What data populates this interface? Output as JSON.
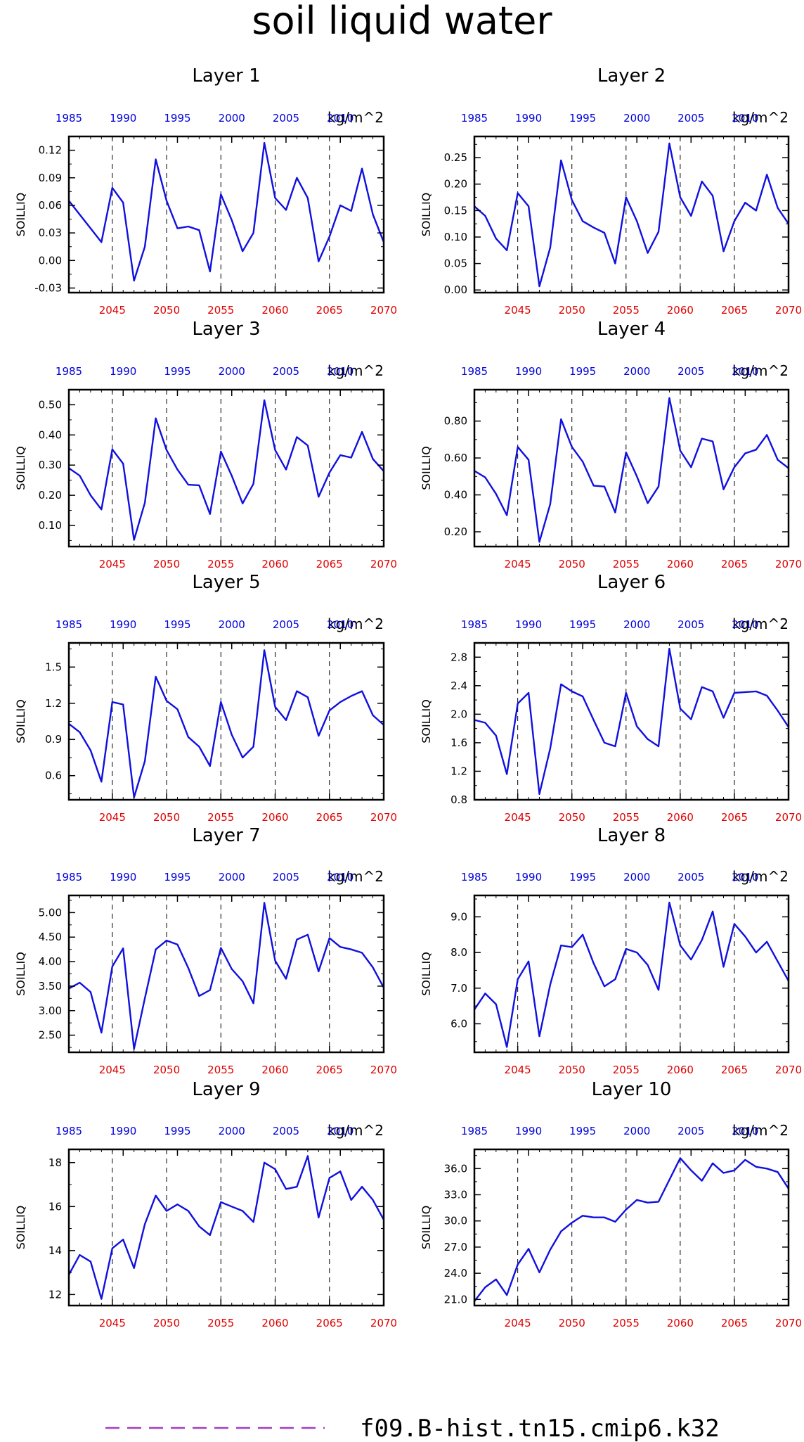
{
  "figure": {
    "title": "soil liquid water",
    "legend": {
      "label": "f09.B-hist.tn15.cmip6.k32",
      "color": "#a040c0"
    },
    "series_color": "#1010e0",
    "bottom_axis_color": "#e00000",
    "top_axis_color": "#0000dd"
  },
  "chart_data": [
    {
      "type": "line",
      "title": "Layer 1",
      "units": "kg/m^2",
      "ylabel": "SOILLIQ",
      "x": [
        2041,
        2042,
        2043,
        2044,
        2045,
        2046,
        2047,
        2048,
        2049,
        2050,
        2051,
        2052,
        2053,
        2054,
        2055,
        2056,
        2057,
        2058,
        2059,
        2060,
        2061,
        2062,
        2063,
        2064,
        2065,
        2066,
        2067,
        2068,
        2069,
        2070
      ],
      "values": [
        0.065,
        0.05,
        0.035,
        0.02,
        0.079,
        0.063,
        -0.022,
        0.015,
        0.11,
        0.065,
        0.035,
        0.037,
        0.033,
        -0.012,
        0.072,
        0.044,
        0.01,
        0.03,
        0.128,
        0.068,
        0.055,
        0.09,
        0.068,
        -0.001,
        0.026,
        0.06,
        0.054,
        0.1,
        0.05,
        0.02
      ],
      "ylim": [
        -0.035,
        0.135
      ],
      "yticks": [
        -0.03,
        0.0,
        0.03,
        0.06,
        0.09,
        0.12
      ],
      "ytick_labels": [
        "-0.03",
        "0.00",
        "0.03",
        "0.06",
        "0.09",
        "0.12"
      ],
      "xlim": [
        2041,
        2070
      ],
      "xticks": [
        2045,
        2050,
        2055,
        2060,
        2065,
        2070
      ],
      "top_xticks": [
        1985,
        1990,
        1995,
        2000,
        2005,
        2010
      ],
      "top_xtick_pos": [
        2041.0,
        2046.0,
        2051.0,
        2056.0,
        2061.0,
        2066.0
      ],
      "vlines": [
        2045,
        2050,
        2055,
        2060,
        2065
      ]
    },
    {
      "type": "line",
      "title": "Layer 2",
      "units": "kg/m^2",
      "ylabel": "SOILLIQ",
      "x": [
        2041,
        2042,
        2043,
        2044,
        2045,
        2046,
        2047,
        2048,
        2049,
        2050,
        2051,
        2052,
        2053,
        2054,
        2055,
        2056,
        2057,
        2058,
        2059,
        2060,
        2061,
        2062,
        2063,
        2064,
        2065,
        2066,
        2067,
        2068,
        2069,
        2070
      ],
      "values": [
        0.158,
        0.14,
        0.097,
        0.075,
        0.183,
        0.158,
        0.007,
        0.08,
        0.245,
        0.17,
        0.13,
        0.118,
        0.108,
        0.05,
        0.175,
        0.13,
        0.07,
        0.11,
        0.277,
        0.175,
        0.14,
        0.205,
        0.178,
        0.073,
        0.13,
        0.165,
        0.15,
        0.218,
        0.155,
        0.125
      ],
      "ylim": [
        -0.005,
        0.29
      ],
      "yticks": [
        0.0,
        0.05,
        0.1,
        0.15,
        0.2,
        0.25
      ],
      "ytick_labels": [
        "0.00",
        "0.05",
        "0.10",
        "0.15",
        "0.20",
        "0.25"
      ],
      "xlim": [
        2041,
        2070
      ],
      "xticks": [
        2045,
        2050,
        2055,
        2060,
        2065,
        2070
      ],
      "top_xticks": [
        1985,
        1990,
        1995,
        2000,
        2005,
        2010
      ],
      "top_xtick_pos": [
        2041.0,
        2046.0,
        2051.0,
        2056.0,
        2061.0,
        2066.0
      ],
      "vlines": [
        2045,
        2050,
        2055,
        2060,
        2065
      ]
    },
    {
      "type": "line",
      "title": "Layer 3",
      "units": "kg/m^2",
      "ylabel": "SOILLIQ",
      "x": [
        2041,
        2042,
        2043,
        2044,
        2045,
        2046,
        2047,
        2048,
        2049,
        2050,
        2051,
        2052,
        2053,
        2054,
        2055,
        2056,
        2057,
        2058,
        2059,
        2060,
        2061,
        2062,
        2063,
        2064,
        2065,
        2066,
        2067,
        2068,
        2069,
        2070
      ],
      "values": [
        0.29,
        0.265,
        0.2,
        0.153,
        0.352,
        0.305,
        0.052,
        0.175,
        0.455,
        0.35,
        0.285,
        0.235,
        0.233,
        0.138,
        0.345,
        0.265,
        0.173,
        0.238,
        0.515,
        0.35,
        0.285,
        0.393,
        0.365,
        0.195,
        0.275,
        0.333,
        0.325,
        0.41,
        0.32,
        0.28
      ],
      "ylim": [
        0.03,
        0.55
      ],
      "yticks": [
        0.1,
        0.2,
        0.3,
        0.4,
        0.5
      ],
      "ytick_labels": [
        "0.10",
        "0.20",
        "0.30",
        "0.40",
        "0.50"
      ],
      "xlim": [
        2041,
        2070
      ],
      "xticks": [
        2045,
        2050,
        2055,
        2060,
        2065,
        2070
      ],
      "top_xticks": [
        1985,
        1990,
        1995,
        2000,
        2005,
        2010
      ],
      "top_xtick_pos": [
        2041.0,
        2046.0,
        2051.0,
        2056.0,
        2061.0,
        2066.0
      ],
      "vlines": [
        2045,
        2050,
        2055,
        2060,
        2065
      ]
    },
    {
      "type": "line",
      "title": "Layer 4",
      "units": "kg/m^2",
      "ylabel": "SOILLIQ",
      "x": [
        2041,
        2042,
        2043,
        2044,
        2045,
        2046,
        2047,
        2048,
        2049,
        2050,
        2051,
        2052,
        2053,
        2054,
        2055,
        2056,
        2057,
        2058,
        2059,
        2060,
        2061,
        2062,
        2063,
        2064,
        2065,
        2066,
        2067,
        2068,
        2069,
        2070
      ],
      "values": [
        0.53,
        0.495,
        0.405,
        0.29,
        0.66,
        0.59,
        0.145,
        0.35,
        0.81,
        0.66,
        0.58,
        0.45,
        0.445,
        0.305,
        0.63,
        0.5,
        0.355,
        0.445,
        0.925,
        0.64,
        0.55,
        0.705,
        0.69,
        0.43,
        0.55,
        0.625,
        0.645,
        0.725,
        0.59,
        0.545
      ],
      "ylim": [
        0.12,
        0.97
      ],
      "yticks": [
        0.2,
        0.4,
        0.6,
        0.8
      ],
      "ytick_labels": [
        "0.20",
        "0.40",
        "0.60",
        "0.80"
      ],
      "xlim": [
        2041,
        2070
      ],
      "xticks": [
        2045,
        2050,
        2055,
        2060,
        2065,
        2070
      ],
      "top_xticks": [
        1985,
        1990,
        1995,
        2000,
        2005,
        2010
      ],
      "top_xtick_pos": [
        2041.0,
        2046.0,
        2051.0,
        2056.0,
        2061.0,
        2066.0
      ],
      "vlines": [
        2045,
        2050,
        2055,
        2060,
        2065
      ]
    },
    {
      "type": "line",
      "title": "Layer 5",
      "units": "kg/m^2",
      "ylabel": "SOILLIQ",
      "x": [
        2041,
        2042,
        2043,
        2044,
        2045,
        2046,
        2047,
        2048,
        2049,
        2050,
        2051,
        2052,
        2053,
        2054,
        2055,
        2056,
        2057,
        2058,
        2059,
        2060,
        2061,
        2062,
        2063,
        2064,
        2065,
        2066,
        2067,
        2068,
        2069,
        2070
      ],
      "values": [
        1.03,
        0.96,
        0.81,
        0.55,
        1.21,
        1.19,
        0.42,
        0.72,
        1.42,
        1.22,
        1.15,
        0.92,
        0.84,
        0.68,
        1.21,
        0.94,
        0.75,
        0.84,
        1.64,
        1.17,
        1.06,
        1.3,
        1.25,
        0.93,
        1.14,
        1.21,
        1.26,
        1.3,
        1.1,
        1.02
      ],
      "ylim": [
        0.4,
        1.7
      ],
      "yticks": [
        0.6,
        0.9,
        1.2,
        1.5
      ],
      "ytick_labels": [
        "0.6",
        "0.9",
        "1.2",
        "1.5"
      ],
      "xlim": [
        2041,
        2070
      ],
      "xticks": [
        2045,
        2050,
        2055,
        2060,
        2065,
        2070
      ],
      "top_xticks": [
        1985,
        1990,
        1995,
        2000,
        2005,
        2010
      ],
      "top_xtick_pos": [
        2041.0,
        2046.0,
        2051.0,
        2056.0,
        2061.0,
        2066.0
      ],
      "vlines": [
        2045,
        2050,
        2055,
        2060,
        2065
      ]
    },
    {
      "type": "line",
      "title": "Layer 6",
      "units": "kg/m^2",
      "ylabel": "SOILLIQ",
      "x": [
        2041,
        2042,
        2043,
        2044,
        2045,
        2046,
        2047,
        2048,
        2049,
        2050,
        2051,
        2052,
        2053,
        2054,
        2055,
        2056,
        2057,
        2058,
        2059,
        2060,
        2061,
        2062,
        2063,
        2064,
        2065,
        2066,
        2067,
        2068,
        2069,
        2070
      ],
      "values": [
        1.92,
        1.88,
        1.7,
        1.16,
        2.15,
        2.3,
        0.88,
        1.52,
        2.42,
        2.32,
        2.25,
        1.92,
        1.6,
        1.55,
        2.3,
        1.83,
        1.65,
        1.55,
        2.92,
        2.08,
        1.93,
        2.38,
        2.32,
        1.95,
        2.3,
        2.31,
        2.32,
        2.26,
        2.05,
        1.82
      ],
      "ylim": [
        0.8,
        3.0
      ],
      "yticks": [
        0.8,
        1.2,
        1.6,
        2.0,
        2.4,
        2.8
      ],
      "ytick_labels": [
        "0.8",
        "1.2",
        "1.6",
        "2.0",
        "2.4",
        "2.8"
      ],
      "xlim": [
        2041,
        2070
      ],
      "xticks": [
        2045,
        2050,
        2055,
        2060,
        2065,
        2070
      ],
      "top_xticks": [
        1985,
        1990,
        1995,
        2000,
        2005,
        2010
      ],
      "top_xtick_pos": [
        2041.0,
        2046.0,
        2051.0,
        2056.0,
        2061.0,
        2066.0
      ],
      "vlines": [
        2045,
        2050,
        2055,
        2060,
        2065
      ]
    },
    {
      "type": "line",
      "title": "Layer 7",
      "units": "kg/m^2",
      "ylabel": "SOILLIQ",
      "x": [
        2041,
        2042,
        2043,
        2044,
        2045,
        2046,
        2047,
        2048,
        2049,
        2050,
        2051,
        2052,
        2053,
        2054,
        2055,
        2056,
        2057,
        2058,
        2059,
        2060,
        2061,
        2062,
        2063,
        2064,
        2065,
        2066,
        2067,
        2068,
        2069,
        2070
      ],
      "values": [
        3.45,
        3.57,
        3.38,
        2.55,
        3.9,
        4.27,
        2.22,
        3.25,
        4.25,
        4.43,
        4.35,
        3.87,
        3.3,
        3.42,
        4.28,
        3.85,
        3.6,
        3.15,
        5.2,
        4.02,
        3.65,
        4.45,
        4.55,
        3.8,
        4.48,
        4.3,
        4.25,
        4.18,
        3.88,
        3.47
      ],
      "ylim": [
        2.15,
        5.35
      ],
      "yticks": [
        2.5,
        3.0,
        3.5,
        4.0,
        4.5,
        5.0
      ],
      "ytick_labels": [
        "2.50",
        "3.00",
        "3.50",
        "4.00",
        "4.50",
        "5.00"
      ],
      "xlim": [
        2041,
        2070
      ],
      "xticks": [
        2045,
        2050,
        2055,
        2060,
        2065,
        2070
      ],
      "top_xticks": [
        1985,
        1990,
        1995,
        2000,
        2005,
        2010
      ],
      "top_xtick_pos": [
        2041.0,
        2046.0,
        2051.0,
        2056.0,
        2061.0,
        2066.0
      ],
      "vlines": [
        2045,
        2050,
        2055,
        2060,
        2065
      ]
    },
    {
      "type": "line",
      "title": "Layer 8",
      "units": "kg/m^2",
      "ylabel": "SOILLIQ",
      "x": [
        2041,
        2042,
        2043,
        2044,
        2045,
        2046,
        2047,
        2048,
        2049,
        2050,
        2051,
        2052,
        2053,
        2054,
        2055,
        2056,
        2057,
        2058,
        2059,
        2060,
        2061,
        2062,
        2063,
        2064,
        2065,
        2066,
        2067,
        2068,
        2069,
        2070
      ],
      "values": [
        6.4,
        6.85,
        6.55,
        5.35,
        7.25,
        7.75,
        5.65,
        7.1,
        8.2,
        8.15,
        8.5,
        7.7,
        7.05,
        7.25,
        8.1,
        8.0,
        7.65,
        6.95,
        9.4,
        8.2,
        7.8,
        8.35,
        9.15,
        7.6,
        8.8,
        8.45,
        8.0,
        8.3,
        7.75,
        7.2
      ],
      "ylim": [
        5.2,
        9.6
      ],
      "yticks": [
        6.0,
        7.0,
        8.0,
        9.0
      ],
      "ytick_labels": [
        "6.0",
        "7.0",
        "8.0",
        "9.0"
      ],
      "xlim": [
        2041,
        2070
      ],
      "xticks": [
        2045,
        2050,
        2055,
        2060,
        2065,
        2070
      ],
      "top_xticks": [
        1985,
        1990,
        1995,
        2000,
        2005,
        2010
      ],
      "top_xtick_pos": [
        2041.0,
        2046.0,
        2051.0,
        2056.0,
        2061.0,
        2066.0
      ],
      "vlines": [
        2045,
        2050,
        2055,
        2060,
        2065
      ]
    },
    {
      "type": "line",
      "title": "Layer 9",
      "units": "kg/m^2",
      "ylabel": "SOILLIQ",
      "x": [
        2041,
        2042,
        2043,
        2044,
        2045,
        2046,
        2047,
        2048,
        2049,
        2050,
        2051,
        2052,
        2053,
        2054,
        2055,
        2056,
        2057,
        2058,
        2059,
        2060,
        2061,
        2062,
        2063,
        2064,
        2065,
        2066,
        2067,
        2068,
        2069,
        2070
      ],
      "values": [
        12.9,
        13.8,
        13.5,
        11.8,
        14.1,
        14.5,
        13.2,
        15.2,
        16.5,
        15.8,
        16.1,
        15.8,
        15.1,
        14.7,
        16.2,
        16.0,
        15.8,
        15.3,
        18.0,
        17.7,
        16.8,
        16.9,
        18.3,
        15.5,
        17.3,
        17.6,
        16.3,
        16.9,
        16.3,
        15.4
      ],
      "ylim": [
        11.5,
        18.6
      ],
      "yticks": [
        12,
        14,
        16,
        18
      ],
      "ytick_labels": [
        "12",
        "14",
        "16",
        "18"
      ],
      "xlim": [
        2041,
        2070
      ],
      "xticks": [
        2045,
        2050,
        2055,
        2060,
        2065,
        2070
      ],
      "top_xticks": [
        1985,
        1990,
        1995,
        2000,
        2005,
        2010
      ],
      "top_xtick_pos": [
        2041.0,
        2046.0,
        2051.0,
        2056.0,
        2061.0,
        2066.0
      ],
      "vlines": [
        2045,
        2050,
        2055,
        2060,
        2065
      ]
    },
    {
      "type": "line",
      "title": "Layer 10",
      "units": "kg/m^2",
      "ylabel": "SOILLIQ",
      "x": [
        2041,
        2042,
        2043,
        2044,
        2045,
        2046,
        2047,
        2048,
        2049,
        2050,
        2051,
        2052,
        2053,
        2054,
        2055,
        2056,
        2057,
        2058,
        2059,
        2060,
        2061,
        2062,
        2063,
        2064,
        2065,
        2066,
        2067,
        2068,
        2069,
        2070
      ],
      "values": [
        20.8,
        22.4,
        23.3,
        21.5,
        25.0,
        26.8,
        24.1,
        26.7,
        28.8,
        29.8,
        30.6,
        30.4,
        30.4,
        29.9,
        31.3,
        32.4,
        32.1,
        32.2,
        34.7,
        37.2,
        35.8,
        34.6,
        36.6,
        35.5,
        35.8,
        37.0,
        36.2,
        36.0,
        35.6,
        33.7
      ],
      "ylim": [
        20.3,
        38.2
      ],
      "yticks": [
        21,
        24,
        27,
        30,
        33,
        36
      ],
      "ytick_labels": [
        "21.0",
        "24.0",
        "27.0",
        "30.0",
        "33.0",
        "36.0"
      ],
      "xlim": [
        2041,
        2070
      ],
      "xticks": [
        2045,
        2050,
        2055,
        2060,
        2065,
        2070
      ],
      "top_xticks": [
        1985,
        1990,
        1995,
        2000,
        2005,
        2010
      ],
      "top_xtick_pos": [
        2041.0,
        2046.0,
        2051.0,
        2056.0,
        2061.0,
        2066.0
      ],
      "vlines": [
        2045,
        2050,
        2055,
        2060,
        2065
      ]
    }
  ]
}
